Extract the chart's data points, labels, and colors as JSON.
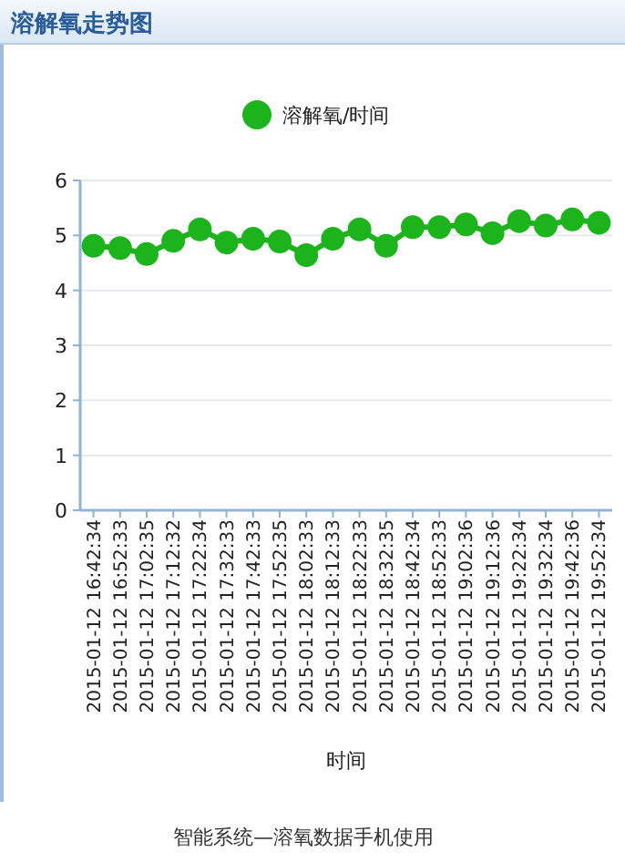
{
  "chart_data": {
    "type": "line",
    "title": "溶解氧走势图",
    "xlabel": "时间",
    "annotations": [
      "智能系统—溶氧数据手机使用"
    ],
    "categories": [
      "2015-01-12 16:42:34",
      "2015-01-12 16:52:33",
      "2015-01-12 17:02:35",
      "2015-01-12 17:12:32",
      "2015-01-12 17:22:34",
      "2015-01-12 17:32:33",
      "2015-01-12 17:42:33",
      "2015-01-12 17:52:35",
      "2015-01-12 18:02:33",
      "2015-01-12 18:12:33",
      "2015-01-12 18:22:33",
      "2015-01-12 18:32:35",
      "2015-01-12 18:42:34",
      "2015-01-12 18:52:33",
      "2015-01-12 19:02:36",
      "2015-01-12 19:12:36",
      "2015-01-12 19:22:34",
      "2015-01-12 19:32:34",
      "2015-01-12 19:42:36",
      "2015-01-12 19:52:34"
    ],
    "series": [
      {
        "name": "溶解氧/时间",
        "color": "#1db31d",
        "values": [
          4.81,
          4.77,
          4.66,
          4.9,
          5.11,
          4.87,
          4.94,
          4.89,
          4.64,
          4.94,
          5.11,
          4.81,
          5.15,
          5.15,
          5.2,
          5.04,
          5.26,
          5.18,
          5.29,
          5.23
        ]
      }
    ],
    "ylim": [
      0,
      6
    ],
    "yticks": [
      0,
      1,
      2,
      3,
      4,
      5,
      6
    ],
    "grid": "y",
    "legend": "top",
    "marker": "circle",
    "line_style": "solid"
  }
}
